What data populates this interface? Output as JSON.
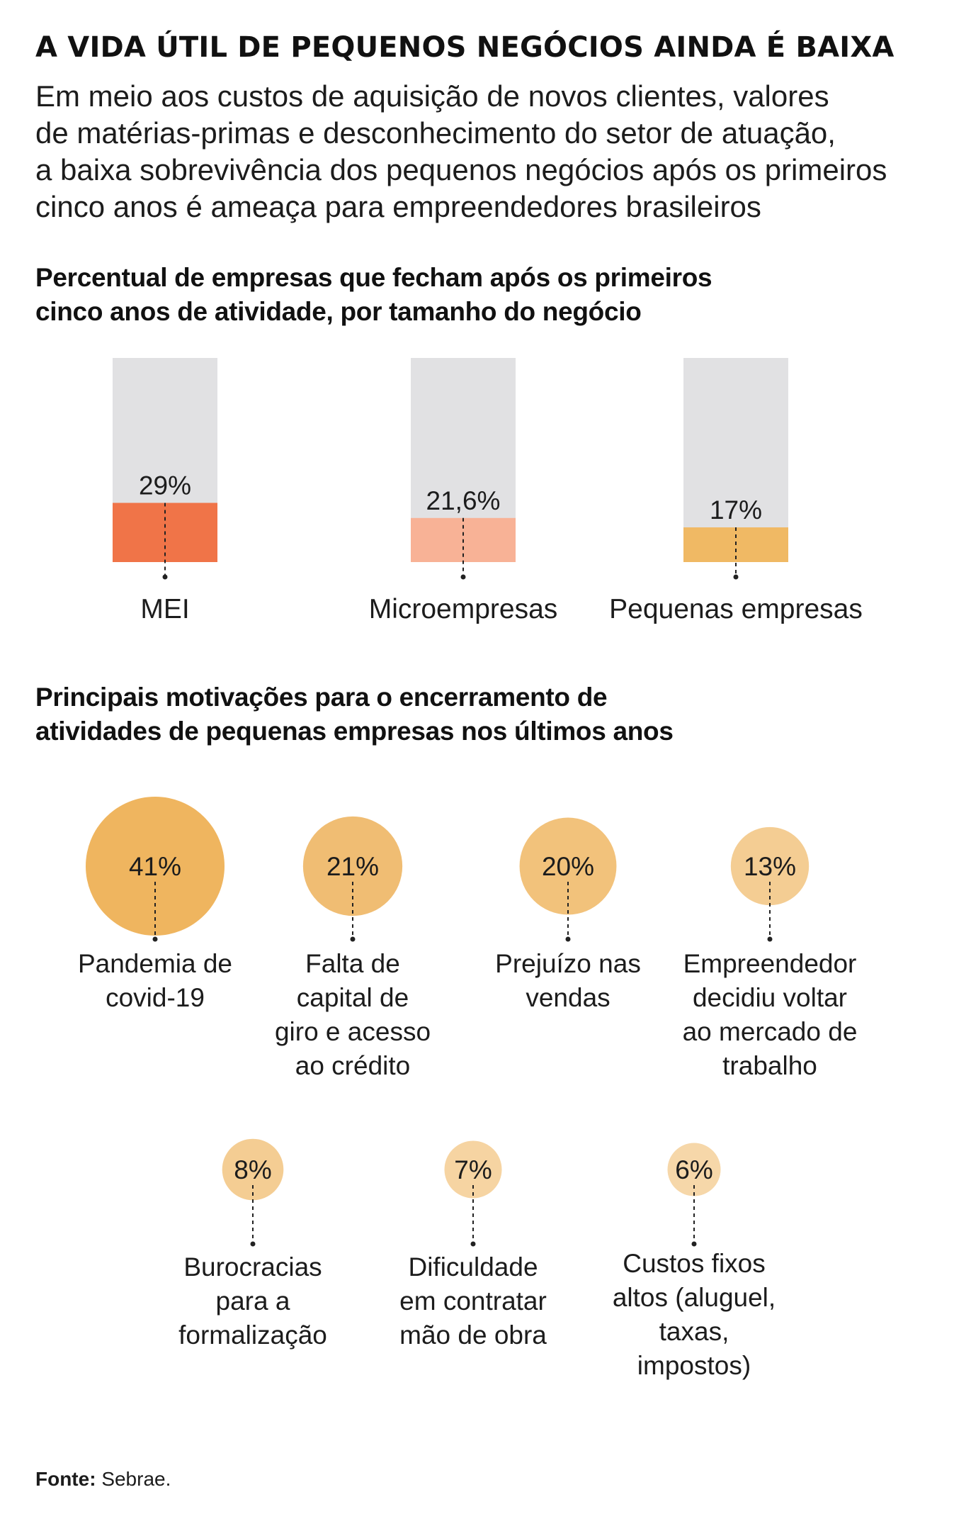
{
  "header": {
    "title": "A VIDA ÚTIL DE PEQUENOS NEGÓCIOS AINDA É BAIXA",
    "subtitle": "Em meio aos custos de aquisição de novos clientes, valores\nde matérias-primas e desconhecimento do setor de atuação,\na baixa sobrevivência dos pequenos negócios após os primeiros\ncinco anos é ameaça para empreendedores brasileiros"
  },
  "bar_section": {
    "title": "Percentual de empresas que fecham após os primeiros\ncinco anos de atividade, por tamanho do negócio"
  },
  "bubble_section": {
    "title": "Principais motivações para o encerramento de\natividades de pequenas empresas nos últimos anos"
  },
  "source": {
    "label": "Fonte:",
    "text": "Sebrae."
  },
  "chart_data": [
    {
      "type": "bar",
      "title": "Percentual de empresas que fecham após os primeiros cinco anos de atividade, por tamanho do negócio",
      "categories": [
        "MEI",
        "Microempresas",
        "Pequenas empresas"
      ],
      "values": [
        29,
        21.6,
        17
      ],
      "value_labels": [
        "29%",
        "21,6%",
        "17%"
      ],
      "colors": [
        "#f07448",
        "#f8b296",
        "#f0b964"
      ],
      "track_color": "#e1e1e3",
      "ylim": [
        0,
        100
      ]
    },
    {
      "type": "bubble",
      "title": "Principais motivações para o encerramento de atividades de pequenas empresas nos últimos anos",
      "items": [
        {
          "label": "Pandemia de\ncovid-19",
          "value": 41,
          "value_label": "41%",
          "color": "#efb55f"
        },
        {
          "label": "Falta de\ncapital de\ngiro e acesso\nao crédito",
          "value": 21,
          "value_label": "21%",
          "color": "#f0bd73"
        },
        {
          "label": "Prejuízo nas\nvendas",
          "value": 20,
          "value_label": "20%",
          "color": "#f2c27b"
        },
        {
          "label": "Empreendedor\ndecidiu voltar\nao mercado de\ntrabalho",
          "value": 13,
          "value_label": "13%",
          "color": "#f4cd93"
        },
        {
          "label": "Burocracias\npara a\nformalização",
          "value": 8,
          "value_label": "8%",
          "color": "#f4cd93"
        },
        {
          "label": "Dificuldade\nem contratar\nmão de obra",
          "value": 7,
          "value_label": "7%",
          "color": "#f6d4a2"
        },
        {
          "label": "Custos fixos\naltos (aluguel,\ntaxas,\nimpostos)",
          "value": 6,
          "value_label": "6%",
          "color": "#f6d7a9"
        }
      ]
    }
  ]
}
